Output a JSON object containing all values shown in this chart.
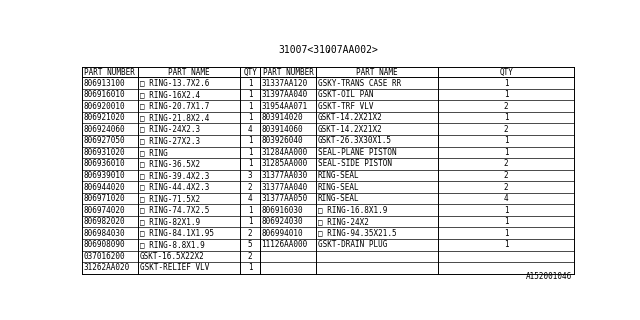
{
  "title": "31007<31007AA002>",
  "watermark": "A152001046",
  "headers_left": [
    "PART NUMBER",
    "PART NAME",
    "QTY"
  ],
  "headers_right": [
    "PART NUMBER",
    "PART NAME",
    "QTY"
  ],
  "left_data": [
    [
      "806913100",
      "□ RING-13.7X2.6",
      "1"
    ],
    [
      "806916010",
      "□ RING-16X2.4",
      "1"
    ],
    [
      "806920010",
      "□ RING-20.7X1.7",
      "1"
    ],
    [
      "806921020",
      "□ RING-21.8X2.4",
      "1"
    ],
    [
      "806924060",
      "□ RING-24X2.3",
      "4"
    ],
    [
      "806927050",
      "□ RING-27X2.3",
      "1"
    ],
    [
      "806931020",
      "□ RING",
      "1"
    ],
    [
      "806936010",
      "□ RING-36.5X2",
      "1"
    ],
    [
      "806939010",
      "□ RING-39.4X2.3",
      "3"
    ],
    [
      "806944020",
      "□ RING-44.4X2.3",
      "2"
    ],
    [
      "806971020",
      "□ RING-71.5X2",
      "4"
    ],
    [
      "806974020",
      "□ RING-74.7X2.5",
      "1"
    ],
    [
      "806982020",
      "□ RING-82X1.9",
      "1"
    ],
    [
      "806984030",
      "□ RING-84.1X1.95",
      "2"
    ],
    [
      "806908090",
      "□ RING-8.8X1.9",
      "5"
    ],
    [
      "037016200",
      "GSKT-16.5X22X2",
      "2"
    ],
    [
      "31262AA020",
      "GSKT-RELIEF VLV",
      "1"
    ]
  ],
  "right_data": [
    [
      "31337AA120",
      "GSKY-TRANS CASE RR",
      "1"
    ],
    [
      "31397AA040",
      "GSKT-OIL PAN",
      "1"
    ],
    [
      "31954AA071",
      "GSKT-TRF VLV",
      "2"
    ],
    [
      "803914020",
      "GSKT-14.2X21X2",
      "1"
    ],
    [
      "803914060",
      "GSKT-14.2X21X2",
      "2"
    ],
    [
      "803926040",
      "GSKT-26.3X30X1.5",
      "1"
    ],
    [
      "31284AA000",
      "SEAL-PLANE PISTON",
      "1"
    ],
    [
      "31285AA000",
      "SEAL-SIDE PISTON",
      "2"
    ],
    [
      "31377AA030",
      "RING-SEAL",
      "2"
    ],
    [
      "31377AA040",
      "RING-SEAL",
      "2"
    ],
    [
      "31377AA050",
      "RING-SEAL",
      "4"
    ],
    [
      "806916030",
      "□ RING-16.8X1.9",
      "1"
    ],
    [
      "806924030",
      "□ RING-24X2",
      "1"
    ],
    [
      "806994010",
      "□ RING-94.35X21.5",
      "1"
    ],
    [
      "11126AA000",
      "GSKT-DRAIN PLUG",
      "1"
    ],
    [
      "",
      "",
      ""
    ],
    [
      "",
      "",
      ""
    ]
  ],
  "bg_color": "#ffffff",
  "text_color": "#000000",
  "line_color": "#000000",
  "font_size": 5.5,
  "title_font_size": 7.0,
  "watermark_font_size": 5.5
}
